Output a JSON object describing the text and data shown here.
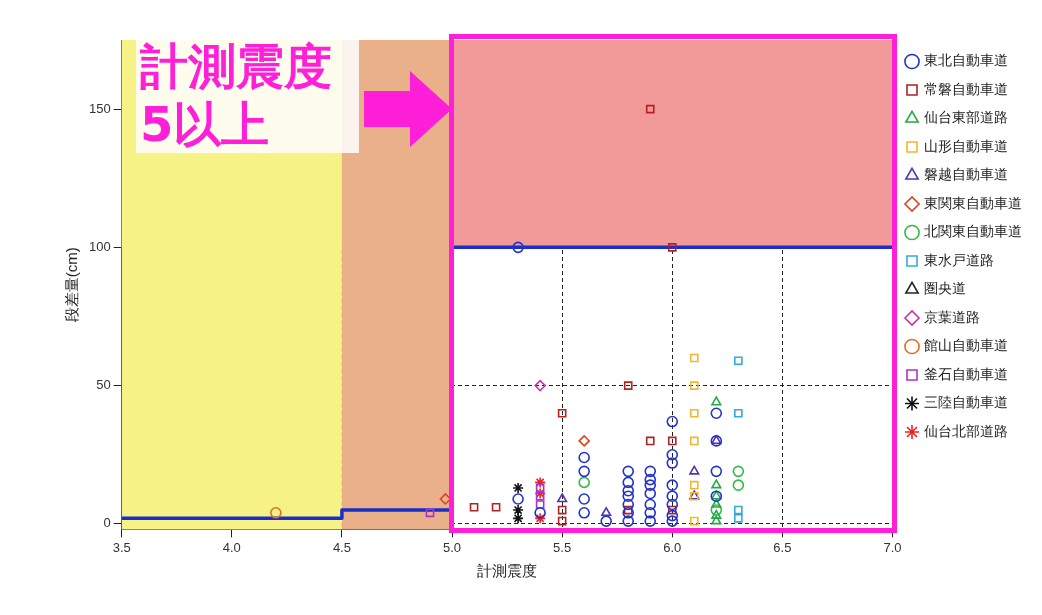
{
  "chart_data": {
    "type": "scatter",
    "xlabel": "計測震度",
    "ylabel": "段差量(cm)",
    "annotations": [
      {
        "text": "計測震度 5以上",
        "x": 5.0,
        "y": 150
      }
    ],
    "xlim": [
      3.5,
      7.0
    ],
    "xticks": [
      {
        "value": 3.5,
        "label": "3.5"
      },
      {
        "value": 4,
        "label": "4.0"
      },
      {
        "value": 4.5,
        "label": "4.5"
      },
      {
        "value": 5,
        "label": "5.0"
      },
      {
        "value": 5.5,
        "label": "5.5"
      },
      {
        "value": 6,
        "label": "6.0"
      },
      {
        "value": 6.5,
        "label": "6.5"
      },
      {
        "value": 7,
        "label": "7.0"
      }
    ],
    "ylim": [
      -2,
      175
    ],
    "yticks": [
      0,
      50,
      100,
      150
    ],
    "grid": true,
    "legend": "right",
    "bands": [
      {
        "axis": "y",
        "from": 100,
        "to": 175,
        "color": "#f29a9a"
      },
      {
        "axis": "x",
        "from": 3.5,
        "to": 4.5,
        "color": "#f7f286"
      },
      {
        "axis": "x",
        "from": 4.5,
        "to": 5.0,
        "color": "#eab08a"
      }
    ],
    "series": [
      {
        "type": "step",
        "color": "#1a2ecc",
        "x": [
          3.5,
          4.5,
          5.0,
          7.0
        ],
        "values": [
          2,
          5,
          100,
          100
        ]
      },
      {
        "name": "東北自動車道",
        "color": "#2233cc",
        "marker": "circle",
        "x": [
          5.3,
          5.3,
          5.4,
          5.6,
          5.6,
          5.6,
          5.6,
          5.7,
          5.8,
          5.8,
          5.8,
          5.8,
          5.8,
          5.8,
          5.8,
          5.9,
          5.9,
          5.9,
          5.9,
          5.9,
          5.9,
          5.9,
          6.0,
          6.0,
          6.0,
          6.0,
          6.0,
          6.0,
          6.0,
          6.0,
          6.2,
          6.2,
          6.2,
          6.2
        ],
        "values": [
          100,
          9,
          4,
          24,
          19,
          9,
          4,
          1,
          19,
          15,
          12,
          10,
          7,
          4,
          1,
          19,
          16,
          14,
          11,
          7,
          4,
          1,
          37,
          25,
          22,
          14,
          10,
          7,
          3,
          1,
          40,
          30,
          19,
          10
        ]
      },
      {
        "name": "常磐自動車道",
        "color": "#b22222",
        "marker": "square",
        "x": [
          5.1,
          5.2,
          5.5,
          5.5,
          5.5,
          5.8,
          5.9,
          6.0,
          5.9,
          6.0,
          5.8,
          6.0
        ],
        "values": [
          6,
          6,
          40,
          5,
          1,
          50,
          30,
          30,
          150,
          100,
          5,
          5
        ]
      },
      {
        "name": "仙台東部道路",
        "color": "#22aa44",
        "marker": "triangle",
        "x": [
          6.2,
          6.2,
          6.2,
          6.2,
          6.2,
          6.2
        ],
        "values": [
          44,
          14,
          10,
          7,
          3,
          1
        ]
      },
      {
        "name": "山形自動車道",
        "color": "#f0b830",
        "marker": "square",
        "x": [
          6.1,
          6.1,
          6.1,
          6.1,
          6.1,
          6.1,
          6.1
        ],
        "values": [
          60,
          50,
          40,
          30,
          14,
          10,
          1
        ]
      },
      {
        "name": "磐越自動車道",
        "color": "#5533aa",
        "marker": "triangle",
        "x": [
          5.5,
          5.7,
          6.1,
          6.1,
          6.2
        ],
        "values": [
          9,
          4,
          19,
          10,
          30
        ]
      },
      {
        "name": "東関東自動車道",
        "color": "#dd4422",
        "marker": "diamond",
        "x": [
          4.97,
          5.6
        ],
        "values": [
          9,
          30
        ]
      },
      {
        "name": "北関東自動車道",
        "color": "#33bb44",
        "marker": "circle",
        "x": [
          5.6,
          6.3,
          6.3,
          6.2
        ],
        "values": [
          15,
          19,
          14,
          5
        ]
      },
      {
        "name": "東水戸道路",
        "color": "#33aadd",
        "marker": "square",
        "x": [
          6.3,
          6.3,
          6.3,
          6.3
        ],
        "values": [
          59,
          40,
          5,
          2
        ]
      },
      {
        "name": "圏央道",
        "color": "#222222",
        "marker": "triangle"
      },
      {
        "name": "京葉道路",
        "color": "#cc33aa",
        "marker": "diamond",
        "x": [
          5.4
        ],
        "values": [
          50
        ]
      },
      {
        "name": "館山自動車道",
        "color": "#e07020",
        "marker": "circle",
        "x": [
          4.2
        ],
        "values": [
          4
        ]
      },
      {
        "name": "釜石自動車道",
        "color": "#aa33cc",
        "marker": "square",
        "x": [
          4.9,
          5.4,
          5.4,
          5.4
        ],
        "values": [
          4,
          13,
          10,
          7
        ]
      },
      {
        "name": "三陸自動車道",
        "color": "#111111",
        "marker": "cross",
        "x": [
          5.3,
          5.3,
          5.3
        ],
        "values": [
          13,
          5,
          2
        ]
      },
      {
        "name": "仙台北部道路",
        "color": "#ee2222",
        "marker": "cross",
        "x": [
          5.4,
          5.4,
          5.4
        ],
        "values": [
          15,
          11,
          2
        ]
      }
    ]
  }
}
